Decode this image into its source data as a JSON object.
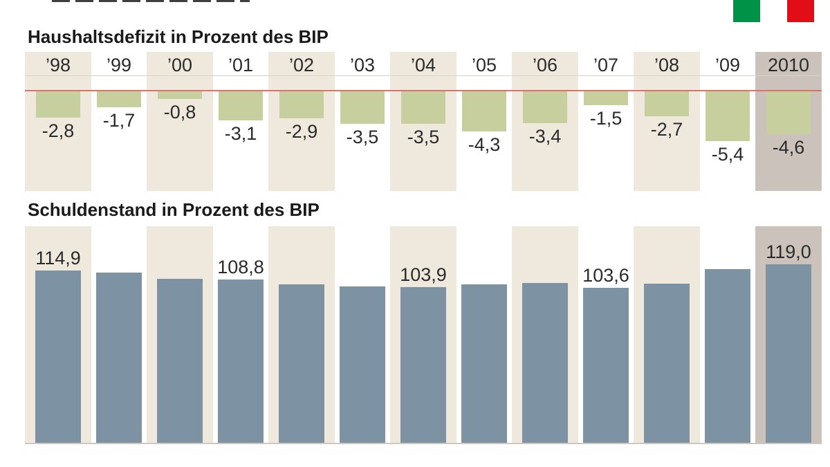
{
  "page": {
    "language": "de",
    "note": "Infographic with Italian flag, top headline cropped out of frame"
  },
  "colors": {
    "band_beige": "#efe9dd",
    "band_white": "#ffffff",
    "band_highlight": "#cbc3bb",
    "deficit_bar": "#c7cf9e",
    "debt_bar": "#7d92a3",
    "zero_line": "#d4766b",
    "header_rule": "#d8d3c7",
    "baseline": "#d2c4c0",
    "headline_fragment": "#3f3f3f",
    "flag_green": "#009246",
    "flag_white": "#ffffff",
    "flag_red": "#e10e18"
  },
  "chart_data": [
    {
      "type": "bar",
      "title": "Haushaltsdefizit in Prozent des BIP",
      "categories": [
        "’98",
        "’99",
        "’00",
        "’01",
        "’02",
        "’03",
        "’04",
        "’05",
        "’06",
        "’07",
        "’08",
        "’09",
        "2010"
      ],
      "values": [
        -2.8,
        -1.7,
        -0.8,
        -3.1,
        -2.9,
        -3.5,
        -3.5,
        -4.3,
        -3.4,
        -1.5,
        -2.7,
        -5.4,
        -4.6
      ],
      "labels": [
        "-2,8",
        "-1,7",
        "-0,8",
        "-3,1",
        "-2,9",
        "-3,5",
        "-3,5",
        "-4,3",
        "-3,4",
        "-1,5",
        "-2,7",
        "-5,4",
        "-4,6"
      ],
      "highlight_index": 12,
      "show_year_headers": true,
      "direction": "down",
      "ylim": [
        -6,
        0
      ],
      "grid": false,
      "legend": "none",
      "zero_line": true
    },
    {
      "type": "bar",
      "title": "Schuldenstand in Prozent des BIP",
      "categories": [
        "’98",
        "’99",
        "’00",
        "’01",
        "’02",
        "’03",
        "’04",
        "’05",
        "’06",
        "’07",
        "’08",
        "’09",
        "2010"
      ],
      "values": [
        114.9,
        113.7,
        109.2,
        108.8,
        105.7,
        104.4,
        103.9,
        105.9,
        106.6,
        103.6,
        106.1,
        115.8,
        119.0
      ],
      "labels": [
        "114,9",
        null,
        null,
        "108,8",
        null,
        null,
        "103,9",
        null,
        null,
        "103,6",
        null,
        null,
        "119,0"
      ],
      "highlight_index": 12,
      "show_year_headers": false,
      "direction": "up",
      "ylim": [
        0,
        125
      ],
      "grid": false,
      "legend": "none",
      "zero_line": false
    }
  ]
}
